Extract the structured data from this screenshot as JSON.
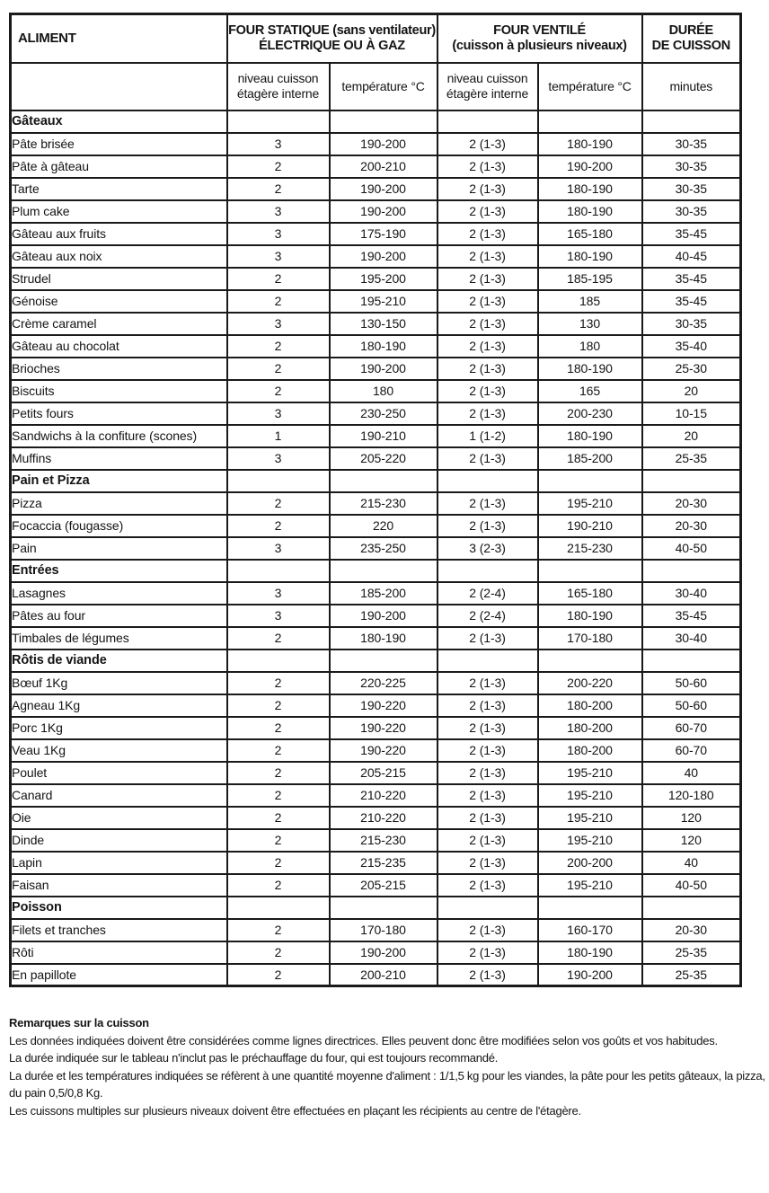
{
  "table": {
    "header": {
      "aliment": "ALIMENT",
      "static_line1": "FOUR STATIQUE (sans ventilateur)",
      "static_line2": "ÉLECTRIQUE OU À GAZ",
      "fan_line1": "FOUR VENTILÉ",
      "fan_line2": "(cuisson à plusieurs niveaux)",
      "duration_line1": "DURÉE",
      "duration_line2": "DE CUISSON",
      "sub_level_line1": "niveau cuisson",
      "sub_level_line2": "étagère interne",
      "sub_temp": "température °C",
      "sub_minutes": "minutes"
    },
    "rows": [
      {
        "section": "Gâteaux"
      },
      {
        "label": "Pâte brisée",
        "cells": [
          "3",
          "190-200",
          "2 (1-3)",
          "180-190",
          "30-35"
        ]
      },
      {
        "label": "Pâte à gâteau",
        "cells": [
          "2",
          "200-210",
          "2 (1-3)",
          "190-200",
          "30-35"
        ]
      },
      {
        "label": "Tarte",
        "cells": [
          "2",
          "190-200",
          "2 (1-3)",
          "180-190",
          "30-35"
        ]
      },
      {
        "label": "Plum cake",
        "cells": [
          "3",
          "190-200",
          "2 (1-3)",
          "180-190",
          "30-35"
        ]
      },
      {
        "label": "Gâteau aux fruits",
        "cells": [
          "3",
          "175-190",
          "2 (1-3)",
          "165-180",
          "35-45"
        ]
      },
      {
        "label": "Gâteau aux noix",
        "cells": [
          "3",
          "190-200",
          "2 (1-3)",
          "180-190",
          "40-45"
        ]
      },
      {
        "label": "Strudel",
        "cells": [
          "2",
          "195-200",
          "2 (1-3)",
          "185-195",
          "35-45"
        ]
      },
      {
        "label": "Génoise",
        "cells": [
          "2",
          "195-210",
          "2 (1-3)",
          "185",
          "35-45"
        ]
      },
      {
        "label": "Crème caramel",
        "cells": [
          "3",
          "130-150",
          "2 (1-3)",
          "130",
          "30-35"
        ]
      },
      {
        "label": "Gâteau au chocolat",
        "cells": [
          "2",
          "180-190",
          "2 (1-3)",
          "180",
          "35-40"
        ]
      },
      {
        "label": "Brioches",
        "cells": [
          "2",
          "190-200",
          "2 (1-3)",
          "180-190",
          "25-30"
        ]
      },
      {
        "label": "Biscuits",
        "cells": [
          "2",
          "180",
          "2 (1-3)",
          "165",
          "20"
        ]
      },
      {
        "label": "Petits fours",
        "cells": [
          "3",
          "230-250",
          "2 (1-3)",
          "200-230",
          "10-15"
        ]
      },
      {
        "label": "Sandwichs à la confiture (scones)",
        "cells": [
          "1",
          "190-210",
          "1 (1-2)",
          "180-190",
          "20"
        ]
      },
      {
        "label": "Muffins",
        "cells": [
          "3",
          "205-220",
          "2 (1-3)",
          "185-200",
          "25-35"
        ]
      },
      {
        "section": "Pain et Pizza"
      },
      {
        "label": "Pizza",
        "cells": [
          "2",
          "215-230",
          "2 (1-3)",
          "195-210",
          "20-30"
        ]
      },
      {
        "label": "Focaccia (fougasse)",
        "cells": [
          "2",
          "220",
          "2 (1-3)",
          "190-210",
          "20-30"
        ]
      },
      {
        "label": "Pain",
        "cells": [
          "3",
          "235-250",
          "3 (2-3)",
          "215-230",
          "40-50"
        ]
      },
      {
        "section": "Entrées"
      },
      {
        "label": "Lasagnes",
        "cells": [
          "3",
          "185-200",
          "2 (2-4)",
          "165-180",
          "30-40"
        ]
      },
      {
        "label": "Pâtes au four",
        "cells": [
          "3",
          "190-200",
          "2 (2-4)",
          "180-190",
          "35-45"
        ]
      },
      {
        "label": "Timbales de légumes",
        "cells": [
          "2",
          "180-190",
          "2 (1-3)",
          "170-180",
          "30-40"
        ]
      },
      {
        "section": "Rôtis de viande"
      },
      {
        "label": "Bœuf 1Kg",
        "cells": [
          "2",
          "220-225",
          "2 (1-3)",
          "200-220",
          "50-60"
        ]
      },
      {
        "label": "Agneau 1Kg",
        "cells": [
          "2",
          "190-220",
          "2 (1-3)",
          "180-200",
          "50-60"
        ]
      },
      {
        "label": "Porc 1Kg",
        "cells": [
          "2",
          "190-220",
          "2 (1-3)",
          "180-200",
          "60-70"
        ]
      },
      {
        "label": "Veau 1Kg",
        "cells": [
          "2",
          "190-220",
          "2 (1-3)",
          "180-200",
          "60-70"
        ]
      },
      {
        "label": "Poulet",
        "cells": [
          "2",
          "205-215",
          "2 (1-3)",
          "195-210",
          "40"
        ]
      },
      {
        "label": "Canard",
        "cells": [
          "2",
          "210-220",
          "2 (1-3)",
          "195-210",
          "120-180"
        ]
      },
      {
        "label": "Oie",
        "cells": [
          "2",
          "210-220",
          "2 (1-3)",
          "195-210",
          "120"
        ]
      },
      {
        "label": "Dinde",
        "cells": [
          "2",
          "215-230",
          "2 (1-3)",
          "195-210",
          "120"
        ]
      },
      {
        "label": "Lapin",
        "cells": [
          "2",
          "215-235",
          "2 (1-3)",
          "200-200",
          "40"
        ]
      },
      {
        "label": "Faisan",
        "cells": [
          "2",
          "205-215",
          "2 (1-3)",
          "195-210",
          "40-50"
        ]
      },
      {
        "section": "Poisson"
      },
      {
        "label": "Filets et tranches",
        "cells": [
          "2",
          "170-180",
          "2 (1-3)",
          "160-170",
          "20-30"
        ]
      },
      {
        "label": "Rôti",
        "cells": [
          "2",
          "190-200",
          "2 (1-3)",
          "180-190",
          "25-35"
        ]
      },
      {
        "label": "En papillote",
        "cells": [
          "2",
          "200-210",
          "2 (1-3)",
          "190-200",
          "25-35"
        ]
      }
    ]
  },
  "notes": {
    "title": "Remarques sur la cuisson",
    "lines": [
      "Les données indiquées doivent être considérées comme lignes directrices. Elles peuvent donc être modifiées selon vos goûts et vos habitudes.",
      "La durée indiquée sur le tableau n'inclut pas le préchauffage du four, qui est toujours recommandé.",
      "La durée et les températures indiquées se réfèrent à une quantité moyenne d'aliment : 1/1,5 kg pour les viandes, la pâte pour les petits gâteaux, la pizza, du pain 0,5/0,8 Kg.",
      "Les cuissons multiples sur plusieurs niveaux doivent être effectuées en plaçant les récipients au centre de l'étagère."
    ]
  }
}
